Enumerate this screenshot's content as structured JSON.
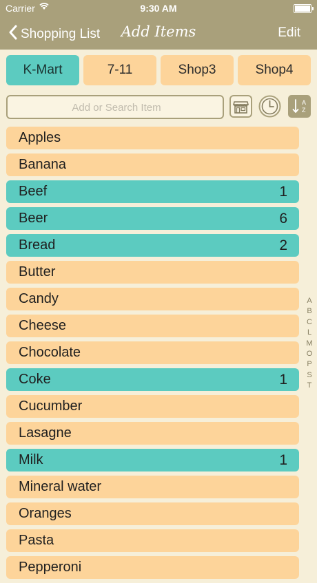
{
  "status": {
    "carrier": "Carrier",
    "time": "9:30 AM"
  },
  "nav": {
    "back_label": "Shopping List",
    "title": "Add Items",
    "edit_label": "Edit"
  },
  "tabs": [
    {
      "label": "K-Mart",
      "active": true
    },
    {
      "label": "7-11",
      "active": false
    },
    {
      "label": "Shop3",
      "active": false
    },
    {
      "label": "Shop4",
      "active": false
    }
  ],
  "search": {
    "placeholder": "Add or Search Item",
    "value": ""
  },
  "toolbar_icons": [
    "store-icon",
    "clock-icon",
    "sort-az-icon"
  ],
  "items": [
    {
      "name": "Apples",
      "count": "",
      "selected": false
    },
    {
      "name": "Banana",
      "count": "",
      "selected": false
    },
    {
      "name": "Beef",
      "count": "1",
      "selected": true
    },
    {
      "name": "Beer",
      "count": "6",
      "selected": true
    },
    {
      "name": "Bread",
      "count": "2",
      "selected": true
    },
    {
      "name": "Butter",
      "count": "",
      "selected": false
    },
    {
      "name": "Candy",
      "count": "",
      "selected": false
    },
    {
      "name": "Cheese",
      "count": "",
      "selected": false
    },
    {
      "name": "Chocolate",
      "count": "",
      "selected": false
    },
    {
      "name": "Coke",
      "count": "1",
      "selected": true
    },
    {
      "name": "Cucumber",
      "count": "",
      "selected": false
    },
    {
      "name": "Lasagne",
      "count": "",
      "selected": false
    },
    {
      "name": "Milk",
      "count": "1",
      "selected": true
    },
    {
      "name": "Mineral water",
      "count": "",
      "selected": false
    },
    {
      "name": "Oranges",
      "count": "",
      "selected": false
    },
    {
      "name": "Pasta",
      "count": "",
      "selected": false
    },
    {
      "name": "Pepperoni",
      "count": "",
      "selected": false
    }
  ],
  "index_letters": [
    "A",
    "B",
    "C",
    "L",
    "M",
    "O",
    "P",
    "S",
    "T"
  ],
  "colors": {
    "bar": "#a9a07b",
    "item": "#fdd49a",
    "selected": "#5ccbc0",
    "background": "#f6efd9"
  }
}
